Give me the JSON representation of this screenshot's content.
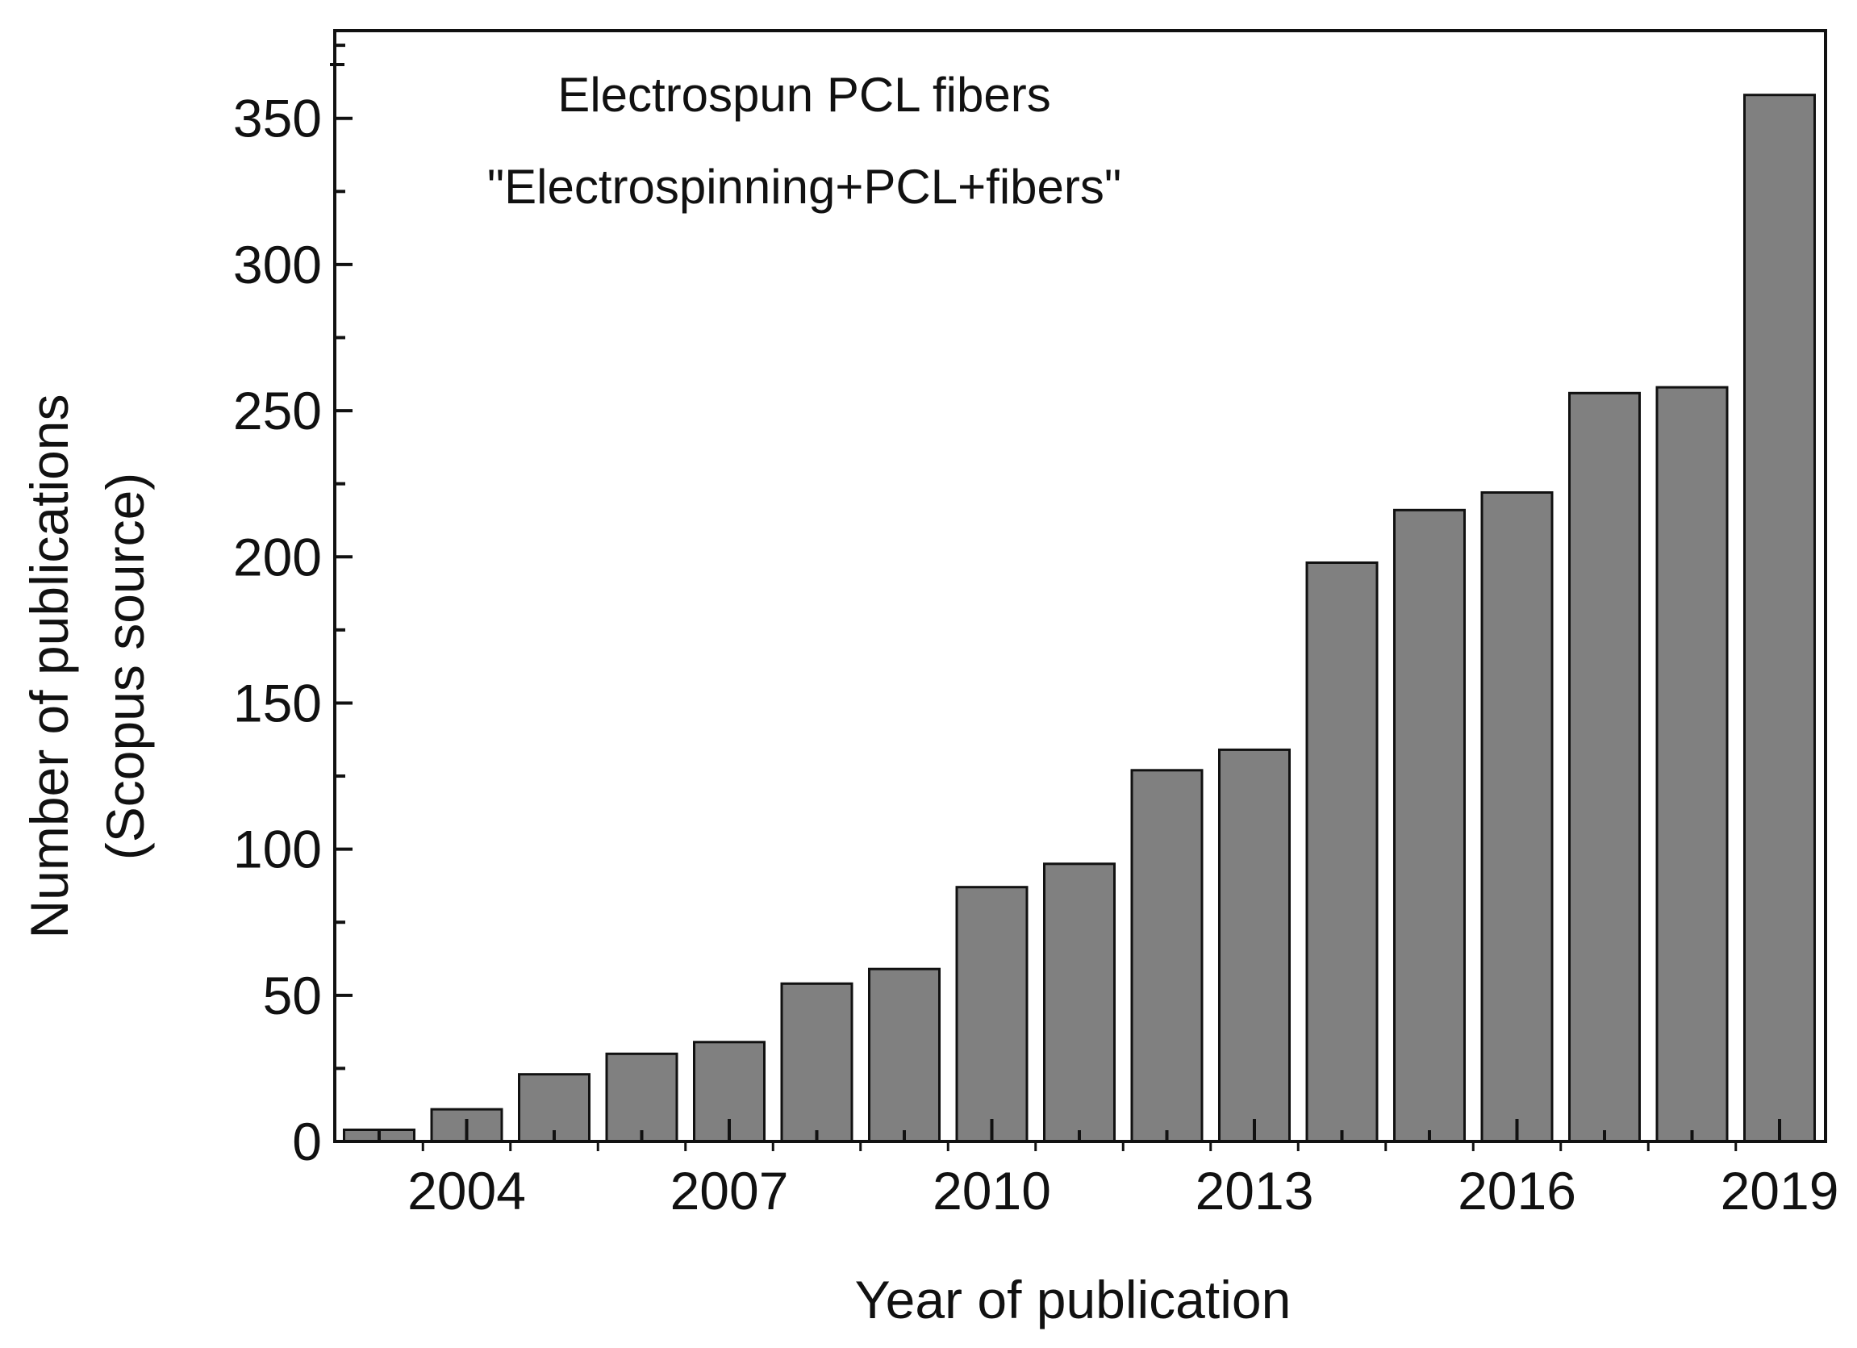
{
  "chart_data": {
    "type": "bar",
    "title": "",
    "annotations": [
      "Electrospun PCL fibers",
      "\"Electrospinning+PCL+fibers\""
    ],
    "xlabel": "Year of publication",
    "ylabel_lines": [
      "Number of publications",
      "(Scopus source)"
    ],
    "categories": [
      "2003",
      "2004",
      "2005",
      "2006",
      "2007",
      "2008",
      "2009",
      "2010",
      "2011",
      "2012",
      "2013",
      "2014",
      "2015",
      "2016",
      "2017",
      "2018",
      "2019"
    ],
    "values": [
      4,
      11,
      23,
      30,
      34,
      54,
      59,
      87,
      95,
      127,
      134,
      198,
      216,
      222,
      256,
      258,
      358
    ],
    "xtick_labels": [
      "2004",
      "2007",
      "2010",
      "2013",
      "2016",
      "2019"
    ],
    "ylim": [
      0,
      380
    ],
    "yticks": [
      0,
      50,
      100,
      150,
      200,
      250,
      300,
      350
    ],
    "yminor_step": 25,
    "grid": false,
    "bar_color": "#808080",
    "edge_color": "#111111"
  }
}
